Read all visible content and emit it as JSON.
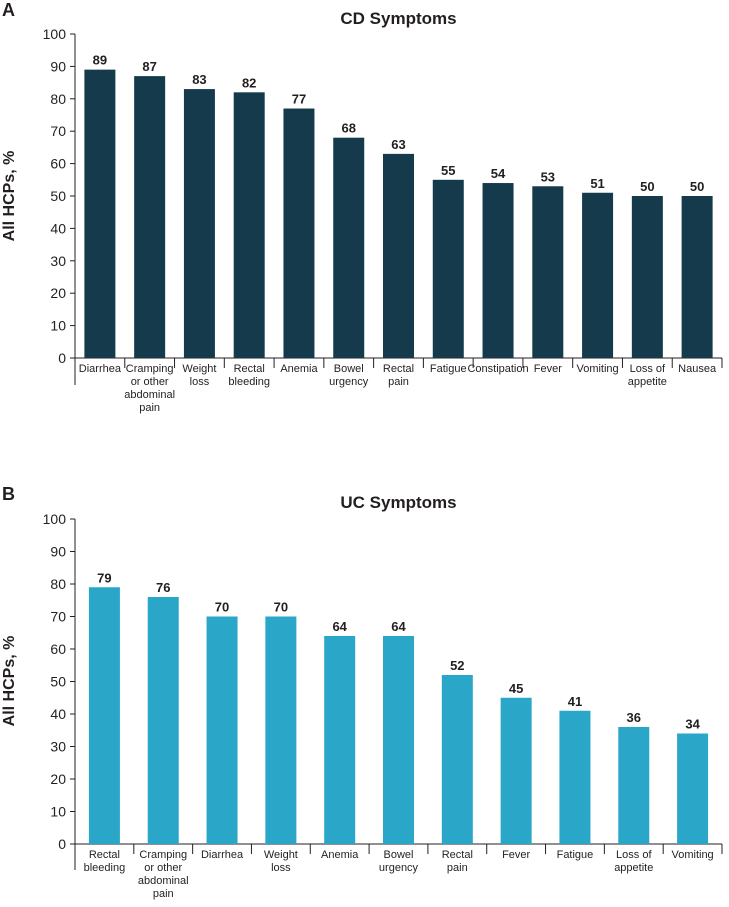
{
  "chart_data": [
    {
      "panel": "A",
      "type": "bar",
      "title": "CD Symptoms",
      "ylabel": "All HCPs, %",
      "xlabel": "",
      "ylim": [
        0,
        100
      ],
      "yticks": [
        "0",
        "10",
        "20",
        "30",
        "40",
        "50",
        "60",
        "70",
        "80",
        "90",
        "100"
      ],
      "color": "#143a4b",
      "categories": [
        [
          "Diarrhea"
        ],
        [
          "Cramping",
          "or other",
          "abdominal",
          "pain"
        ],
        [
          "Weight",
          "loss"
        ],
        [
          "Rectal",
          "bleeding"
        ],
        [
          "Anemia"
        ],
        [
          "Bowel",
          "urgency"
        ],
        [
          "Rectal",
          "pain"
        ],
        [
          "Fatigue"
        ],
        [
          "Constipation"
        ],
        [
          "Fever"
        ],
        [
          "Vomiting"
        ],
        [
          "Loss of",
          "appetite"
        ],
        [
          "Nausea"
        ]
      ],
      "values": [
        89,
        87,
        83,
        82,
        77,
        68,
        63,
        55,
        54,
        53,
        51,
        50,
        50
      ]
    },
    {
      "panel": "B",
      "type": "bar",
      "title": "UC Symptoms",
      "ylabel": "All HCPs, %",
      "xlabel": "",
      "ylim": [
        0,
        100
      ],
      "yticks": [
        "0",
        "10",
        "20",
        "30",
        "40",
        "50",
        "60",
        "70",
        "80",
        "90",
        "100"
      ],
      "color": "#29a6c8",
      "categories": [
        [
          "Rectal",
          "bleeding"
        ],
        [
          "Cramping",
          "or other",
          "abdominal",
          "pain"
        ],
        [
          "Diarrhea"
        ],
        [
          "Weight",
          "loss"
        ],
        [
          "Anemia"
        ],
        [
          "Bowel",
          "urgency"
        ],
        [
          "Rectal",
          "pain"
        ],
        [
          "Fever"
        ],
        [
          "Fatigue"
        ],
        [
          "Loss of",
          "appetite"
        ],
        [
          "Vomiting"
        ]
      ],
      "values": [
        79,
        76,
        70,
        70,
        64,
        64,
        52,
        45,
        41,
        36,
        34
      ]
    }
  ]
}
